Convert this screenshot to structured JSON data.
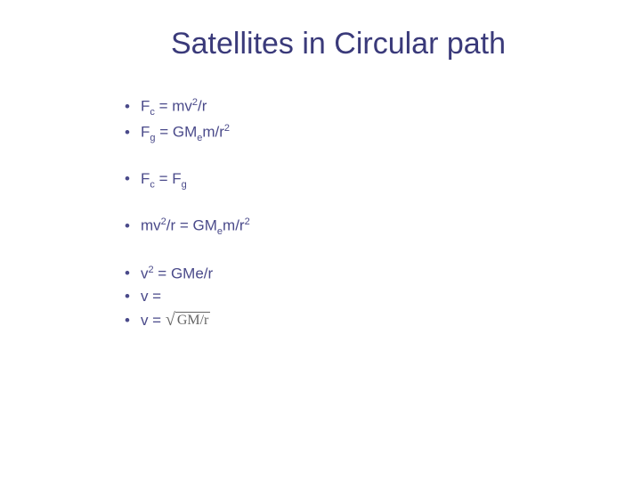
{
  "slide": {
    "title": "Satellites in Circular path",
    "title_color": "#3a3a7a",
    "text_color": "#4a4a8a",
    "sqrt_color": "#666666",
    "background_color": "#ffffff",
    "title_fontsize": 34,
    "bullet_fontsize": 17,
    "bullets": [
      {
        "parts": [
          "F",
          "c",
          " = mv",
          "2",
          "/r"
        ],
        "formatted": "F_c = mv^2/r"
      },
      {
        "parts": [
          "F",
          "g",
          " = GM",
          "e",
          "m/r",
          "2"
        ],
        "formatted": "F_g = GM_e m/r^2"
      },
      {
        "parts": [
          "F",
          "c",
          " = F",
          "g"
        ],
        "formatted": "F_c = F_g"
      },
      {
        "parts": [
          "mv",
          "2",
          "/r = GM",
          "e",
          "m/r",
          "2"
        ],
        "formatted": "mv^2/r = GM_e m/r^2"
      },
      {
        "parts": [
          "v",
          "2",
          " = GMe/r"
        ],
        "formatted": "v^2 = GMe/r"
      },
      {
        "parts": [
          "v ="
        ],
        "formatted": "v ="
      },
      {
        "parts": [
          "v = "
        ],
        "sqrt": "GM/r",
        "formatted": "v = sqrt(GM/r)"
      }
    ],
    "eq1_a": "F",
    "eq1_b": "c",
    "eq1_c": " = mv",
    "eq1_d": "2",
    "eq1_e": "/r",
    "eq2_a": "F",
    "eq2_b": "g",
    "eq2_c": " = GM",
    "eq2_d": "e",
    "eq2_e": "m/r",
    "eq2_f": "2",
    "eq3_a": "F",
    "eq3_b": "c",
    "eq3_c": " = F",
    "eq3_d": "g",
    "eq4_a": "mv",
    "eq4_b": "2",
    "eq4_c": "/r = GM",
    "eq4_d": "e",
    "eq4_e": "m/r",
    "eq4_f": "2",
    "eq5_a": "v",
    "eq5_b": "2",
    "eq5_c": " = GMe/r",
    "eq6_a": "v =",
    "eq7_a": "v = ",
    "eq7_sqrt": "GM/r",
    "bullet_char": "•"
  }
}
